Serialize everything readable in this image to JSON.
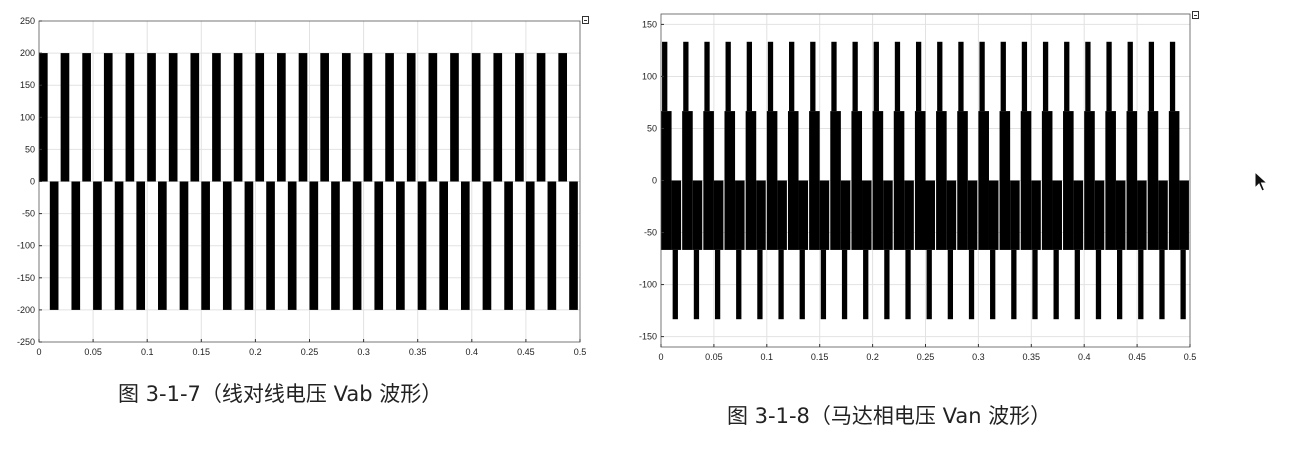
{
  "chart_data": [
    {
      "type": "line",
      "caption": "图 3-1-7（线对线电压 Vab 波形）",
      "xlim": [
        0,
        0.5
      ],
      "ylim": [
        -250,
        250
      ],
      "x_ticks": [
        "0",
        "0.05",
        "0.1",
        "0.15",
        "0.2",
        "0.25",
        "0.3",
        "0.35",
        "0.4",
        "0.45",
        "0.5"
      ],
      "y_ticks": [
        "250",
        "200",
        "150",
        "100",
        "50",
        "0",
        "-50",
        "-100",
        "-150",
        "-200",
        "-250"
      ],
      "grid": true,
      "levels": [
        200,
        0,
        -200
      ],
      "period": 0.02,
      "series": [
        {
          "values": [
            200,
            0,
            -200
          ]
        }
      ]
    },
    {
      "type": "line",
      "caption": "图 3-1-8（马达相电压 Van 波形）",
      "xlim": [
        0,
        0.5
      ],
      "ylim": [
        -160,
        160
      ],
      "x_ticks": [
        "0",
        "0.05",
        "0.1",
        "0.15",
        "0.2",
        "0.25",
        "0.3",
        "0.35",
        "0.4",
        "0.45",
        "0.5"
      ],
      "y_ticks": [
        "150",
        "100",
        "50",
        "0",
        "-50",
        "-100",
        "-150"
      ],
      "grid": true,
      "levels": [
        133.3,
        66.7,
        0,
        -66.7,
        -133.3
      ],
      "period": 0.02,
      "series": [
        {
          "values": [
            133.3,
            66.7,
            0,
            -66.7,
            -133.3
          ]
        }
      ]
    }
  ]
}
